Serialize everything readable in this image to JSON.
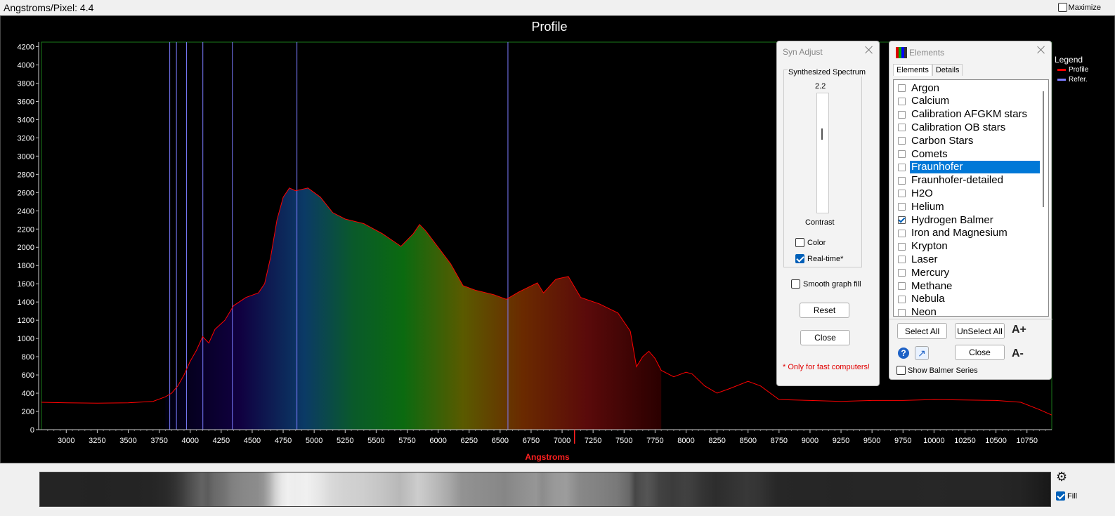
{
  "topbar": {
    "angstroms_label": "Angstroms/Pixel: 4.4",
    "maximize_label": "Maximize"
  },
  "chart_data": {
    "type": "line",
    "title": "Profile",
    "xlabel": "Angstroms",
    "ylabel": "",
    "xlim": [
      2800,
      10950
    ],
    "ylim": [
      0,
      4250
    ],
    "x_ticks": [
      3000,
      3250,
      3500,
      3750,
      4000,
      4250,
      4500,
      4750,
      5000,
      5250,
      5500,
      5750,
      6000,
      6250,
      6500,
      6750,
      7000,
      7250,
      7500,
      7750,
      8000,
      8250,
      8500,
      8750,
      9000,
      9250,
      9500,
      9750,
      10000,
      10250,
      10500,
      10750
    ],
    "y_ticks": [
      0,
      200,
      400,
      600,
      800,
      1000,
      1200,
      1400,
      1600,
      1800,
      2000,
      2200,
      2400,
      2600,
      2800,
      3000,
      3200,
      3400,
      3600,
      3800,
      4000,
      4200
    ],
    "grid": false,
    "series": [
      {
        "name": "Profile",
        "color": "#ff0000",
        "points": [
          [
            2800,
            300
          ],
          [
            3000,
            295
          ],
          [
            3250,
            290
          ],
          [
            3500,
            295
          ],
          [
            3700,
            310
          ],
          [
            3800,
            360
          ],
          [
            3850,
            400
          ],
          [
            3900,
            480
          ],
          [
            3950,
            600
          ],
          [
            4000,
            750
          ],
          [
            4050,
            870
          ],
          [
            4100,
            1020
          ],
          [
            4150,
            950
          ],
          [
            4200,
            1100
          ],
          [
            4280,
            1200
          ],
          [
            4350,
            1360
          ],
          [
            4450,
            1450
          ],
          [
            4550,
            1500
          ],
          [
            4600,
            1600
          ],
          [
            4650,
            1900
          ],
          [
            4700,
            2300
          ],
          [
            4750,
            2550
          ],
          [
            4800,
            2650
          ],
          [
            4850,
            2620
          ],
          [
            4950,
            2650
          ],
          [
            5050,
            2550
          ],
          [
            5150,
            2380
          ],
          [
            5250,
            2310
          ],
          [
            5400,
            2260
          ],
          [
            5550,
            2150
          ],
          [
            5700,
            2010
          ],
          [
            5800,
            2150
          ],
          [
            5850,
            2250
          ],
          [
            5900,
            2180
          ],
          [
            6000,
            2000
          ],
          [
            6100,
            1820
          ],
          [
            6200,
            1580
          ],
          [
            6300,
            1530
          ],
          [
            6450,
            1480
          ],
          [
            6550,
            1430
          ],
          [
            6650,
            1510
          ],
          [
            6800,
            1610
          ],
          [
            6850,
            1500
          ],
          [
            6950,
            1650
          ],
          [
            7050,
            1680
          ],
          [
            7150,
            1450
          ],
          [
            7300,
            1380
          ],
          [
            7450,
            1280
          ],
          [
            7550,
            1080
          ],
          [
            7600,
            690
          ],
          [
            7650,
            800
          ],
          [
            7700,
            860
          ],
          [
            7750,
            780
          ],
          [
            7800,
            650
          ],
          [
            7900,
            580
          ],
          [
            8000,
            630
          ],
          [
            8050,
            610
          ],
          [
            8150,
            480
          ],
          [
            8250,
            400
          ],
          [
            8350,
            450
          ],
          [
            8500,
            530
          ],
          [
            8600,
            480
          ],
          [
            8750,
            330
          ],
          [
            9000,
            320
          ],
          [
            9250,
            310
          ],
          [
            9500,
            320
          ],
          [
            9750,
            320
          ],
          [
            10000,
            330
          ],
          [
            10250,
            325
          ],
          [
            10500,
            320
          ],
          [
            10700,
            300
          ],
          [
            10850,
            220
          ],
          [
            10950,
            160
          ]
        ]
      },
      {
        "name": "Refer.",
        "color": "#7b7bff"
      }
    ],
    "reference_lines": [
      3835,
      3889,
      3970,
      4102,
      4340,
      4861,
      6563
    ],
    "marker_x": 7100,
    "legend_title": "Legend",
    "legend_position": "right"
  },
  "syn_adjust": {
    "title": "Syn Adjust",
    "group_label": "Synthesized Spectrum",
    "slider_value": "2.2",
    "contrast_label": "Contrast",
    "color_label": "Color",
    "color_checked": false,
    "realtime_label": "Real-time*",
    "realtime_checked": true,
    "smooth_label": "Smooth graph fill",
    "smooth_checked": false,
    "reset_label": "Reset",
    "close_label": "Close",
    "note": "* Only for fast computers!"
  },
  "elements_panel": {
    "title": "Elements",
    "tabs": [
      "Elements",
      "Details"
    ],
    "items": [
      {
        "label": "Argon",
        "checked": false,
        "selected": false
      },
      {
        "label": "Calcium",
        "checked": false,
        "selected": false
      },
      {
        "label": "Calibration AFGKM stars",
        "checked": false,
        "selected": false
      },
      {
        "label": "Calibration OB stars",
        "checked": false,
        "selected": false
      },
      {
        "label": "Carbon Stars",
        "checked": false,
        "selected": false
      },
      {
        "label": "Comets",
        "checked": false,
        "selected": false
      },
      {
        "label": "Fraunhofer",
        "checked": false,
        "selected": true
      },
      {
        "label": "Fraunhofer-detailed",
        "checked": false,
        "selected": false
      },
      {
        "label": "H2O",
        "checked": false,
        "selected": false
      },
      {
        "label": "Helium",
        "checked": false,
        "selected": false
      },
      {
        "label": "Hydrogen Balmer",
        "checked": true,
        "selected": false
      },
      {
        "label": "Iron and Magnesium",
        "checked": false,
        "selected": false
      },
      {
        "label": "Krypton",
        "checked": false,
        "selected": false
      },
      {
        "label": "Laser",
        "checked": false,
        "selected": false
      },
      {
        "label": "Mercury",
        "checked": false,
        "selected": false
      },
      {
        "label": "Methane",
        "checked": false,
        "selected": false
      },
      {
        "label": "Nebula",
        "checked": false,
        "selected": false
      },
      {
        "label": "Neon",
        "checked": false,
        "selected": false
      }
    ],
    "select_all_label": "Select All",
    "unselect_all_label": "UnSelect All",
    "close_label": "Close",
    "font_plus": "A+",
    "font_minus": "A-",
    "show_balmer_label": "Show Balmer Series",
    "show_balmer_checked": false
  },
  "bottom": {
    "fill_label": "Fill",
    "fill_checked": true
  }
}
